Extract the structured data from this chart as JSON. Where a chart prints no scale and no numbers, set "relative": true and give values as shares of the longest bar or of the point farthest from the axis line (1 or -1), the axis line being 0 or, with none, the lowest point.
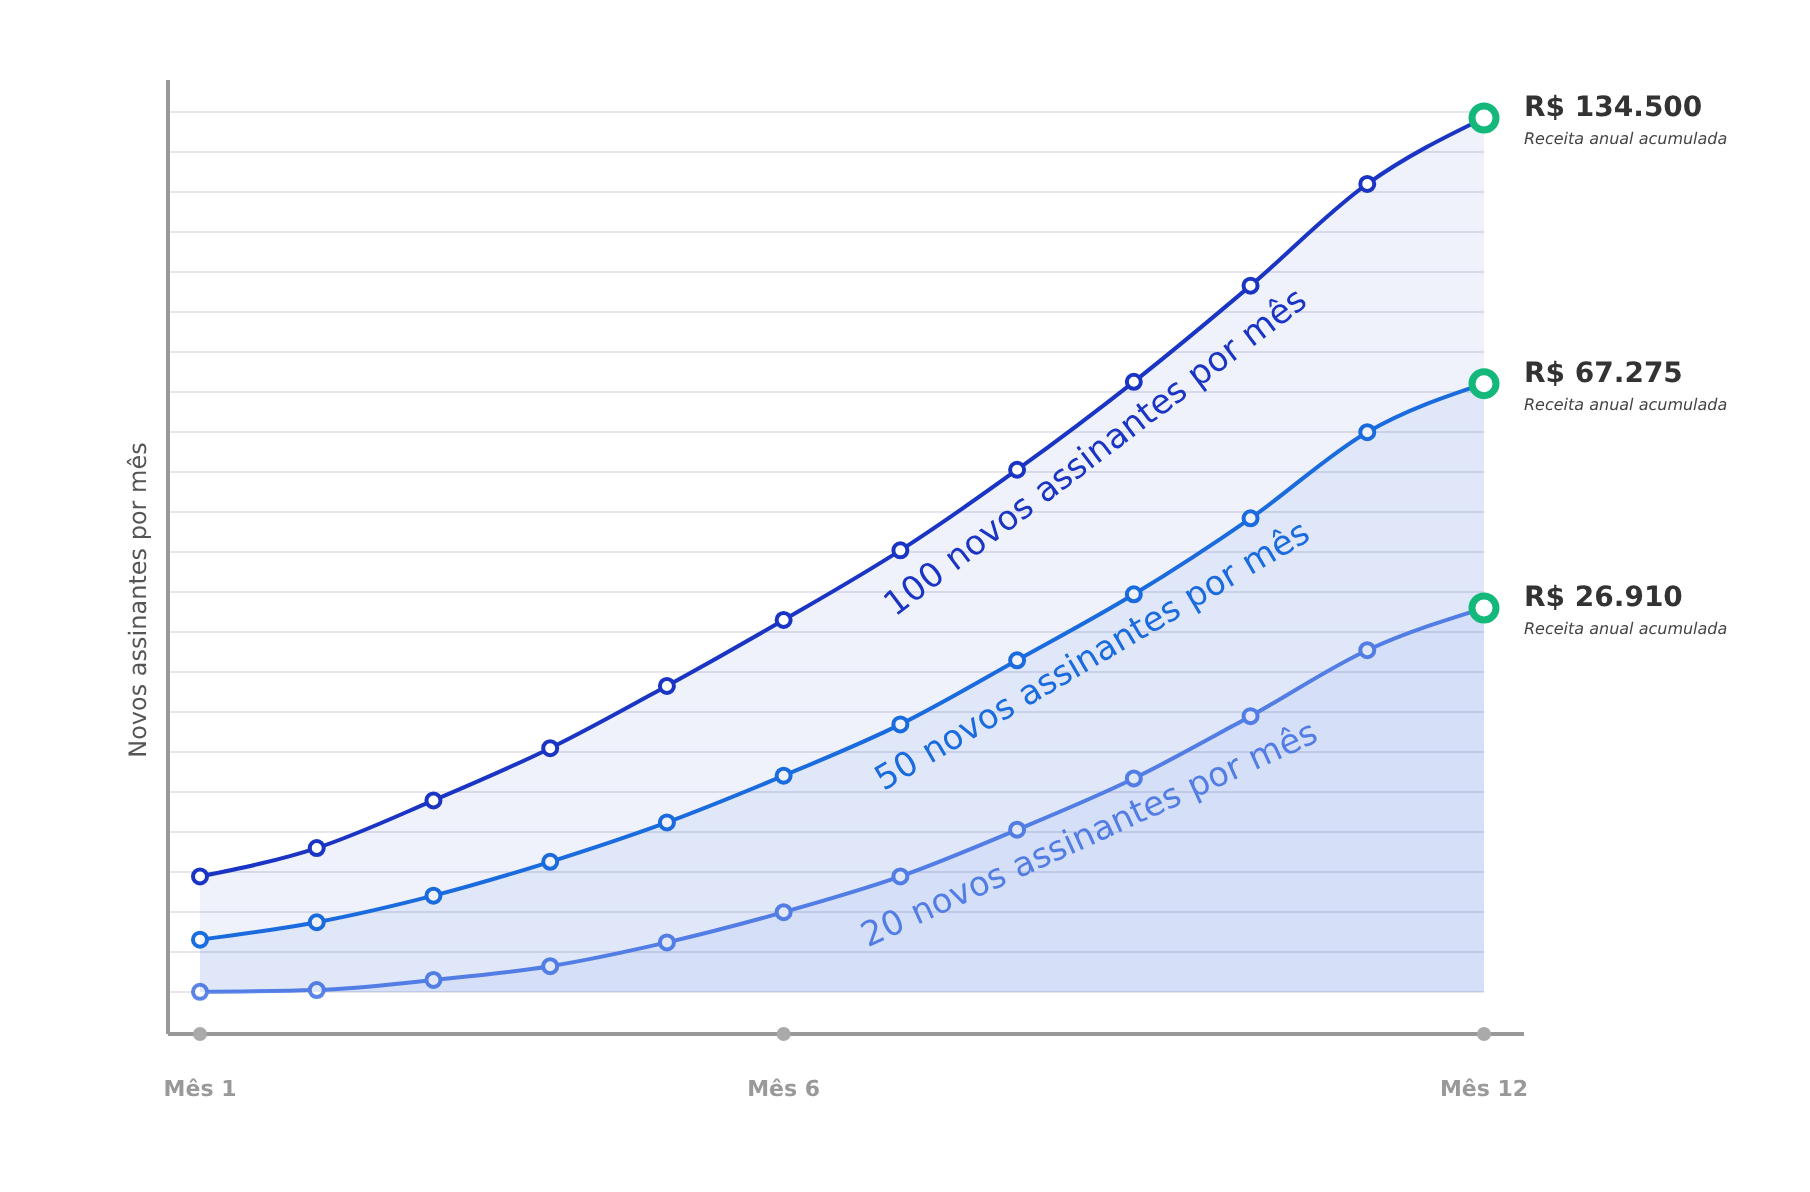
{
  "chart_data": {
    "type": "area",
    "relative": true,
    "ylabel": "Novos assinantes por mês",
    "categories": [
      "Mês 1",
      null,
      null,
      null,
      null,
      "Mês 6",
      null,
      null,
      null,
      null,
      null,
      "Mês 12"
    ],
    "grid": true,
    "marker": "circle",
    "line_style": "solid",
    "series": [
      {
        "name": "100 novos assinantes por mês",
        "color": "#1a35c4",
        "values": [
          0.172,
          0.203,
          0.255,
          0.312,
          0.38,
          0.452,
          0.528,
          0.616,
          0.712,
          0.817,
          0.928,
          1
        ]
      },
      {
        "name": "50 novos assinantes por mês",
        "color": "#1a6fe0",
        "values": [
          0.103,
          0.122,
          0.151,
          0.188,
          0.231,
          0.282,
          0.338,
          0.408,
          0.48,
          0.563,
          0.657,
          0.71
        ]
      },
      {
        "name": "20 novos assinantes por mês",
        "color": "#5b85e8",
        "values": [
          0.046,
          0.048,
          0.059,
          0.074,
          0.1,
          0.133,
          0.172,
          0.223,
          0.279,
          0.347,
          0.419,
          0.465
        ]
      }
    ],
    "annotations": [
      {
        "text": "R$ 134.500",
        "x": "Mês 12",
        "y": 1
      },
      "Receita anual acumulada",
      {
        "text": "R$ 67.275",
        "x": "Mês 12",
        "y": 0.71
      },
      "Receita anual acumulada",
      {
        "text": "R$ 26.910",
        "x": "Mês 12",
        "y": 0.465
      },
      "Receita anual acumulada"
    ]
  }
}
